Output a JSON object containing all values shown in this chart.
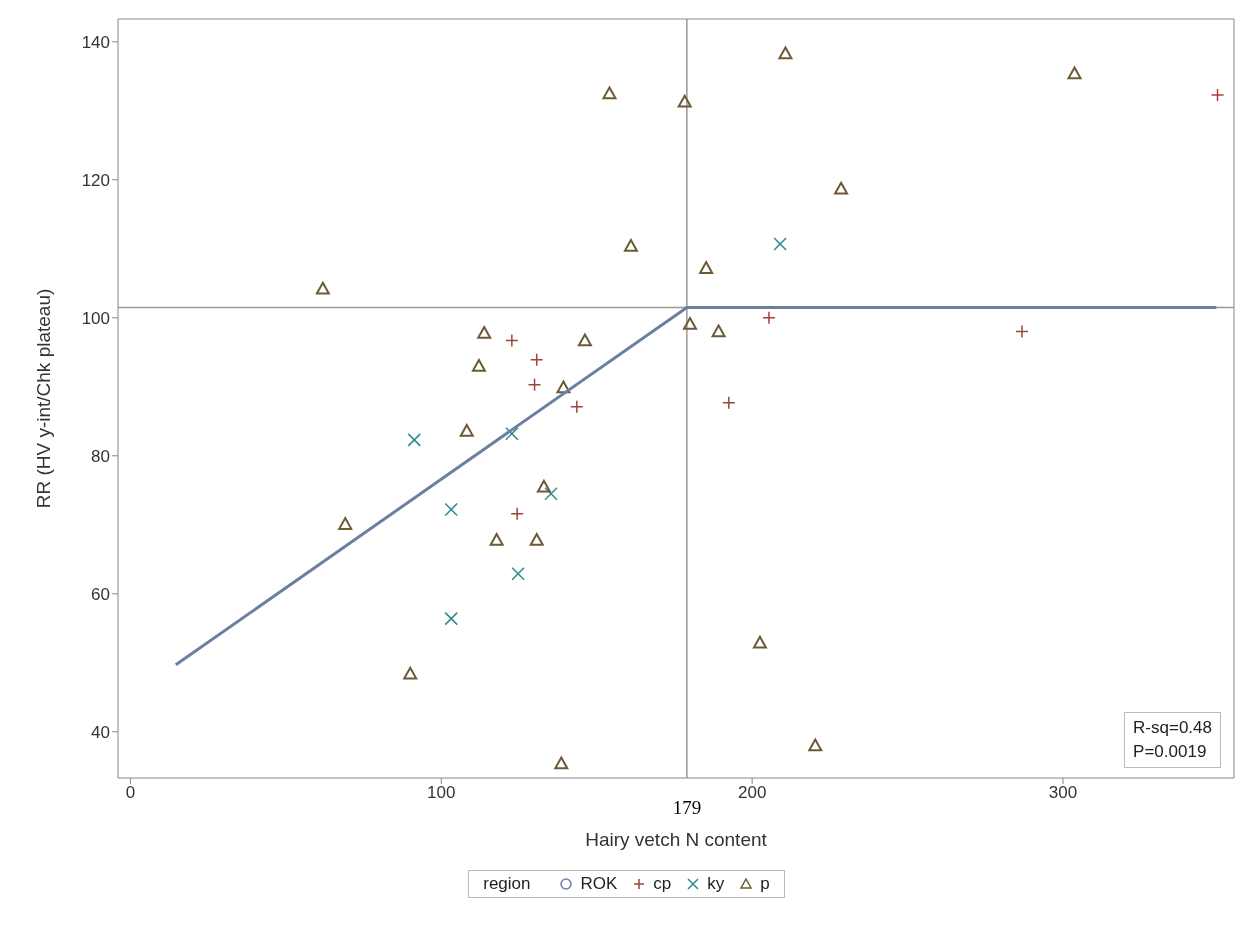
{
  "chart_data": {
    "type": "scatter",
    "xlabel": "Hairy vetch N content",
    "ylabel": "RR (HV y-int/Chk plateau)",
    "legend_title": "region",
    "legend": "bottom",
    "xlim": [
      -4,
      355
    ],
    "xticks": [
      0,
      100,
      200,
      300
    ],
    "ylim": [
      33.3,
      143.3
    ],
    "yticks": [
      40,
      60,
      80,
      100,
      120,
      140
    ],
    "series": [
      {
        "name": "ROK",
        "color": "#6f7fb5",
        "marker": "circle"
      },
      {
        "name": "cp",
        "color": "#a0443a",
        "marker": "cross",
        "x": [
          122.7,
          130.7,
          130,
          143.6,
          124.4,
          205.4,
          192.5,
          286.8,
          349.7
        ],
        "values": [
          96.7,
          93.9,
          90.3,
          87.1,
          71.6,
          100,
          87.7,
          98,
          132.3
        ]
      },
      {
        "name": "ky",
        "color": "#2e8b8a",
        "marker": "x",
        "x": [
          91.3,
          122.7,
          135.3,
          103.2,
          124.7,
          103.2,
          209
        ],
        "values": [
          82.3,
          83.2,
          74.5,
          72.2,
          62.9,
          56.4,
          110.7
        ]
      },
      {
        "name": "p",
        "color": "#6b5a35",
        "marker": "triangle",
        "x": [
          61.9,
          161,
          113.8,
          146.2,
          112.1,
          139.3,
          108.2,
          133,
          69.1,
          117.8,
          130.7,
          90,
          138.6,
          210.7,
          154.1,
          178.3,
          228.6,
          185.2,
          180,
          189.2,
          202.5,
          220.3,
          303.7
        ],
        "values": [
          104.2,
          110.4,
          97.8,
          96.7,
          93,
          89.9,
          83.6,
          75.5,
          70.1,
          67.8,
          67.8,
          48.4,
          35.4,
          138.3,
          132.5,
          131.3,
          118.7,
          107.2,
          99.1,
          98,
          52.9,
          38,
          135.4
        ]
      },
      {
        "type": "line",
        "color": "#6b7fa3",
        "marker": "none",
        "x": [
          14.6,
          179,
          349.3
        ],
        "values": [
          49.7,
          101.5,
          101.5
        ]
      }
    ],
    "ref_lines": [
      {
        "axis": "x",
        "value": 179,
        "label": "179",
        "color": "#999999"
      },
      {
        "axis": "y",
        "value": 101.5,
        "color": "#999999"
      }
    ],
    "annotations": [
      "R-sq=0.48",
      "P=0.0019"
    ]
  }
}
